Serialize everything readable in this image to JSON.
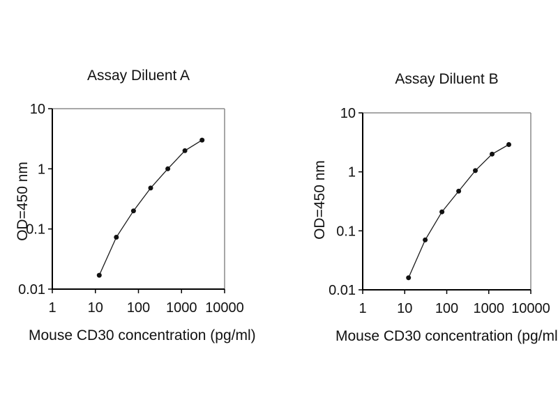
{
  "page": {
    "background": "#ffffff",
    "text_color": "#111111"
  },
  "chart_data": [
    {
      "type": "line",
      "title": "Assay Diluent A",
      "xlabel": "Mouse CD30 concentration (pg/ml)",
      "ylabel": "OD=450 nm",
      "xscale": "log",
      "yscale": "log",
      "xlim": [
        1,
        10000
      ],
      "ylim": [
        0.01,
        10
      ],
      "xticks": [
        1,
        10,
        100,
        1000,
        10000
      ],
      "yticks": [
        0.01,
        0.1,
        1,
        10
      ],
      "x": [
        12.3,
        30.7,
        76.8,
        192,
        480,
        1200,
        3000
      ],
      "y": [
        0.017,
        0.073,
        0.2,
        0.48,
        1.0,
        2.0,
        3.0
      ],
      "marker": "filled-circle",
      "grid": false,
      "legend": null,
      "colors": {
        "line": "#1a1a1a",
        "marker": "#111111",
        "axis": "#000000",
        "frame": "#8a8a8a",
        "tick_text": "#111111"
      }
    },
    {
      "type": "line",
      "title": "Assay Diluent B",
      "xlabel": "Mouse CD30 concentration (pg/ml)",
      "ylabel": "OD=450 nm",
      "xscale": "log",
      "yscale": "log",
      "xlim": [
        1,
        10000
      ],
      "ylim": [
        0.01,
        10
      ],
      "xticks": [
        1,
        10,
        100,
        1000,
        10000
      ],
      "yticks": [
        0.01,
        0.1,
        1,
        10
      ],
      "x": [
        12.3,
        30.7,
        76.8,
        192,
        480,
        1200,
        3000
      ],
      "y": [
        0.016,
        0.07,
        0.21,
        0.47,
        1.05,
        2.0,
        2.9
      ],
      "marker": "filled-circle",
      "grid": false,
      "legend": null,
      "colors": {
        "line": "#1a1a1a",
        "marker": "#111111",
        "axis": "#000000",
        "frame": "#8a8a8a",
        "tick_text": "#111111"
      }
    }
  ]
}
